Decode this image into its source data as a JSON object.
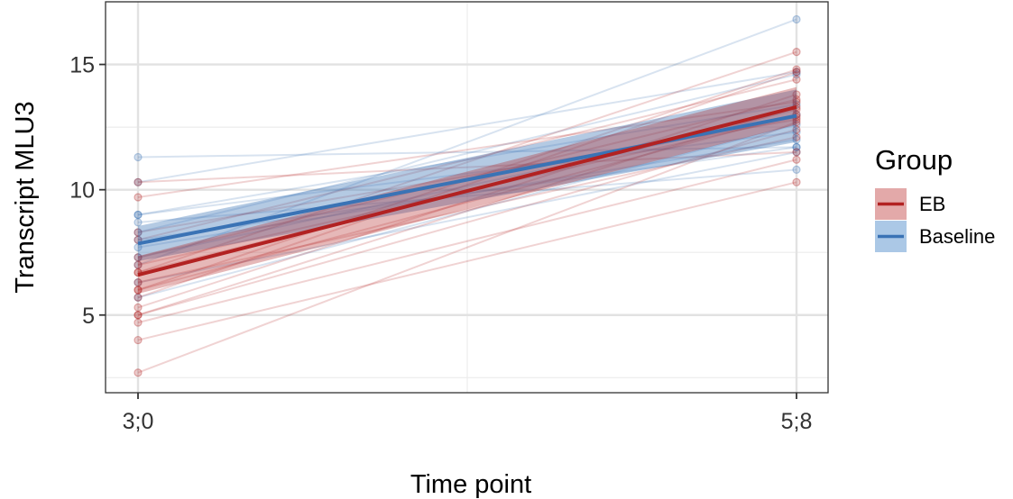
{
  "chart_data": {
    "type": "line",
    "title": "",
    "xlabel": "Time point",
    "ylabel": "Transcript MLU3",
    "x_categories": [
      "3;0",
      "5;8"
    ],
    "ylim": [
      1.9,
      17.5
    ],
    "y_ticks": [
      5,
      10,
      15
    ],
    "grid": true,
    "legend": {
      "title": "Group",
      "placement": "right",
      "entries": [
        {
          "name": "EB",
          "color": "#b22222",
          "fill": "#d98c8c"
        },
        {
          "name": "Baseline",
          "color": "#3a73b5",
          "fill": "#8fb6de"
        }
      ]
    },
    "series": [
      {
        "name": "EB",
        "color": "#b22222",
        "trend": {
          "start": 6.6,
          "end": 13.3
        },
        "ci_band": {
          "start": [
            5.85,
            7.35
          ],
          "end": [
            12.6,
            14.1
          ]
        },
        "individuals": [
          [
            2.7,
            12.7
          ],
          [
            4.0,
            10.3
          ],
          [
            4.7,
            11.2
          ],
          [
            5.0,
            12.4
          ],
          [
            5.0,
            13.3
          ],
          [
            5.3,
            13.8
          ],
          [
            5.7,
            14.7
          ],
          [
            6.0,
            13.0
          ],
          [
            6.0,
            14.8
          ],
          [
            6.3,
            12.1
          ],
          [
            6.7,
            13.2
          ],
          [
            6.7,
            15.5
          ],
          [
            7.0,
            12.9
          ],
          [
            7.3,
            13.6
          ],
          [
            8.0,
            14.4
          ],
          [
            8.3,
            12.8
          ],
          [
            9.7,
            13.5
          ],
          [
            10.3,
            11.5
          ]
        ]
      },
      {
        "name": "Baseline",
        "color": "#3a73b5",
        "trend": {
          "start": 7.85,
          "end": 12.95
        },
        "ci_band": {
          "start": [
            7.15,
            8.55
          ],
          "end": [
            11.9,
            14.0
          ]
        },
        "individuals": [
          [
            5.7,
            12.6
          ],
          [
            6.3,
            11.5
          ],
          [
            7.0,
            16.8
          ],
          [
            7.3,
            13.0
          ],
          [
            7.7,
            12.0
          ],
          [
            8.0,
            11.7
          ],
          [
            8.3,
            14.6
          ],
          [
            8.7,
            10.8
          ],
          [
            9.0,
            13.4
          ],
          [
            9.0,
            12.3
          ],
          [
            10.3,
            14.7
          ],
          [
            11.3,
            11.7
          ]
        ]
      }
    ]
  }
}
